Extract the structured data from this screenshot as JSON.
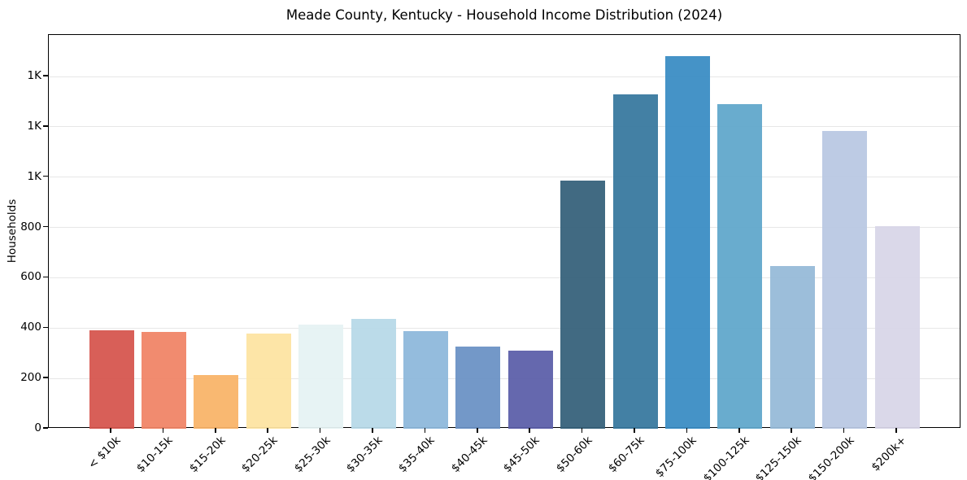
{
  "chart_data": {
    "type": "bar",
    "title": "Meade County, Kentucky - Household Income Distribution (2024)",
    "xlabel": "",
    "ylabel": "Households",
    "categories": [
      "< $10k",
      "$10-15k",
      "$15-20k",
      "$20-25k",
      "$25-30k",
      "$30-35k",
      "$35-40k",
      "$40-45k",
      "$45-50k",
      "$50-60k",
      "$60-75k",
      "$75-100k",
      "$100-125k",
      "$125-150k",
      "$150-200k",
      "$200k+"
    ],
    "values": [
      390,
      385,
      212,
      377,
      415,
      435,
      389,
      328,
      309,
      985,
      1328,
      1482,
      1291,
      647,
      1182,
      805
    ],
    "bar_colors": [
      "#d6554e",
      "#f08466",
      "#f9b468",
      "#fde3a1",
      "#e5f2f3",
      "#b7d9e8",
      "#8db8db",
      "#6a92c5",
      "#5b5fa9",
      "#35617a",
      "#37789e",
      "#398cc4",
      "#60a7cb",
      "#96bad8",
      "#b9c8e2",
      "#d8d6e8"
    ],
    "ylim": [
      0,
      1565
    ],
    "yticks": {
      "values": [
        0,
        200,
        400,
        600,
        800,
        1000,
        1200,
        1400
      ],
      "labels": [
        "0",
        "200",
        "400",
        "600",
        "800",
        "1K",
        "1K",
        "1K"
      ]
    },
    "grid": "horizontal",
    "grid_color": "#e7e7e7",
    "axis_color": "#000000",
    "legend": "none"
  }
}
